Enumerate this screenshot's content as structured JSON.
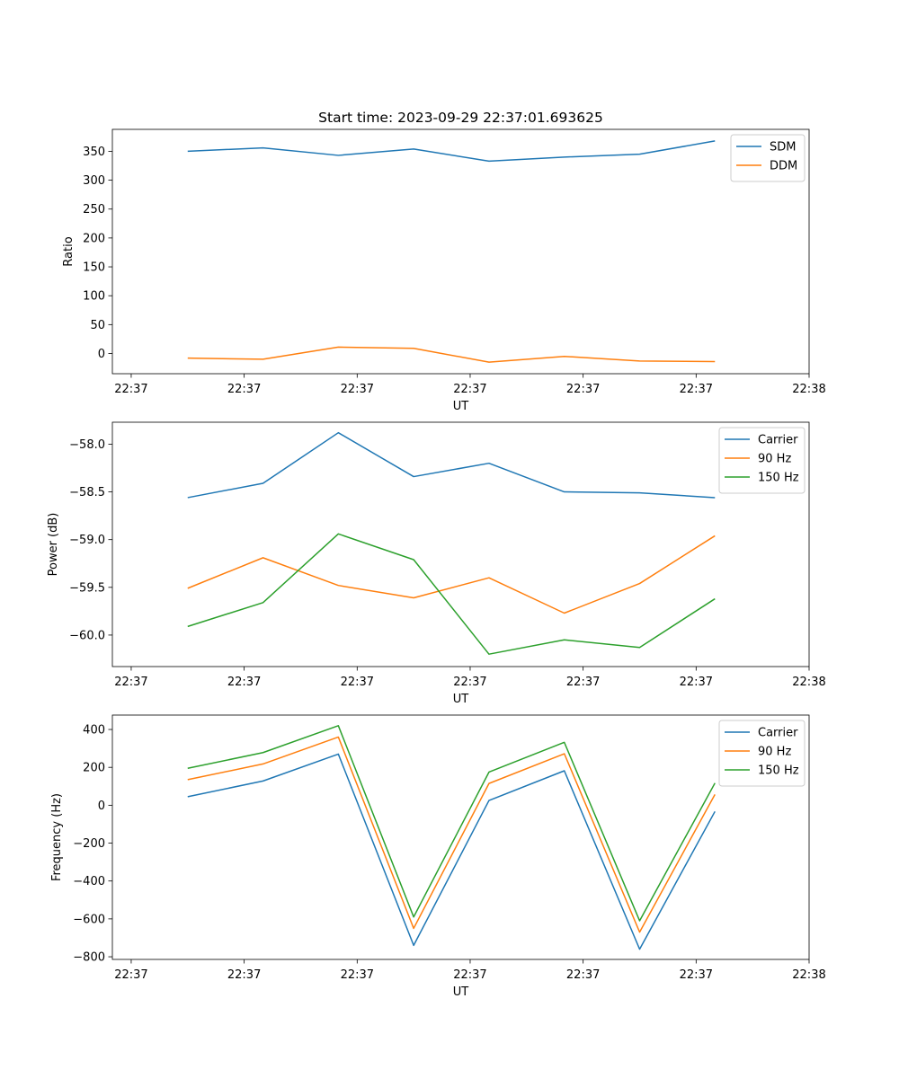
{
  "chart_data": [
    {
      "type": "line",
      "title": "Start time: 2023-09-29 22:37:01.693625",
      "xlabel": "UT",
      "ylabel": "Ratio",
      "xlim": [
        0,
        9.25
      ],
      "ylim": [
        -35,
        388
      ],
      "x_ticks": [
        0.25,
        1.75,
        3.25,
        4.75,
        6.25,
        7.75,
        9.25
      ],
      "x_tick_labels": [
        "22:37",
        "22:37",
        "22:37",
        "22:37",
        "22:37",
        "22:37",
        "22:38"
      ],
      "y_ticks": [
        0,
        50,
        100,
        150,
        200,
        250,
        300,
        350
      ],
      "x": [
        1,
        2,
        3,
        4,
        5,
        6,
        7,
        8
      ],
      "legend": "top-right",
      "series": [
        {
          "name": "SDM",
          "color": "#1f77b4",
          "values": [
            350,
            356,
            343,
            354,
            333,
            340,
            345,
            368
          ]
        },
        {
          "name": "DDM",
          "color": "#ff7f0e",
          "values": [
            -8,
            -10,
            11,
            9,
            -15,
            -5,
            -13,
            -14
          ]
        }
      ]
    },
    {
      "type": "line",
      "xlabel": "UT",
      "ylabel": "Power (dB)",
      "xlim": [
        0,
        9.25
      ],
      "ylim": [
        -60.33,
        -57.77
      ],
      "x_ticks": [
        0.25,
        1.75,
        3.25,
        4.75,
        6.25,
        7.75,
        9.25
      ],
      "x_tick_labels": [
        "22:37",
        "22:37",
        "22:37",
        "22:37",
        "22:37",
        "22:37",
        "22:38"
      ],
      "y_ticks": [
        -60.0,
        -59.5,
        -59.0,
        -58.5,
        -58.0
      ],
      "y_tick_labels": [
        "−60.0",
        "−59.5",
        "−59.0",
        "−58.5",
        "−58.0"
      ],
      "x": [
        1,
        2,
        3,
        4,
        5,
        6,
        7,
        8
      ],
      "legend": "top-right",
      "series": [
        {
          "name": "Carrier",
          "color": "#1f77b4",
          "values": [
            -58.56,
            -58.41,
            -57.88,
            -58.34,
            -58.2,
            -58.5,
            -58.51,
            -58.56
          ]
        },
        {
          "name": "90 Hz",
          "color": "#ff7f0e",
          "values": [
            -59.51,
            -59.19,
            -59.48,
            -59.61,
            -59.4,
            -59.77,
            -59.46,
            -58.96
          ]
        },
        {
          "name": "150 Hz",
          "color": "#2ca02c",
          "values": [
            -59.91,
            -59.66,
            -58.94,
            -59.21,
            -60.2,
            -60.05,
            -60.13,
            -59.62
          ]
        }
      ]
    },
    {
      "type": "line",
      "xlabel": "UT",
      "ylabel": "Frequency (Hz)",
      "xlim": [
        0,
        9.25
      ],
      "ylim": [
        -814,
        476
      ],
      "x_ticks": [
        0.25,
        1.75,
        3.25,
        4.75,
        6.25,
        7.75,
        9.25
      ],
      "x_tick_labels": [
        "22:37",
        "22:37",
        "22:37",
        "22:37",
        "22:37",
        "22:37",
        "22:38"
      ],
      "y_ticks": [
        -800,
        -600,
        -400,
        -200,
        0,
        200,
        400
      ],
      "y_tick_labels": [
        "−800",
        "−600",
        "−400",
        "−200",
        "0",
        "200",
        "400"
      ],
      "x": [
        1,
        2,
        3,
        4,
        5,
        6,
        7,
        8
      ],
      "legend": "top-right",
      "series": [
        {
          "name": "Carrier",
          "color": "#1f77b4",
          "values": [
            45,
            128,
            270,
            -740,
            25,
            182,
            -760,
            -33
          ]
        },
        {
          "name": "90 Hz",
          "color": "#ff7f0e",
          "values": [
            135,
            218,
            360,
            -650,
            115,
            272,
            -670,
            57
          ]
        },
        {
          "name": "150 Hz",
          "color": "#2ca02c",
          "values": [
            195,
            278,
            420,
            -590,
            175,
            332,
            -610,
            117
          ]
        }
      ]
    }
  ]
}
